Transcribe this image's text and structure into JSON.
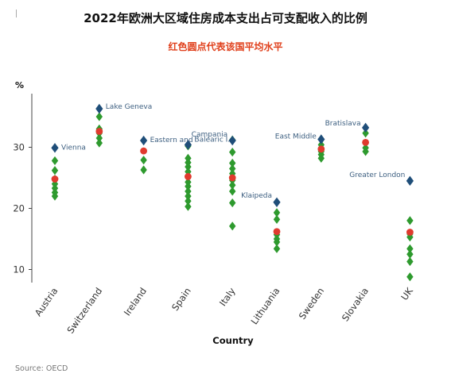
{
  "header": {
    "title": "2022年欧洲大区域住房成本支出占可支配收入的比例",
    "subtitle": "红色圆点代表该国平均水平"
  },
  "footer": {
    "source": "Source: OECD"
  },
  "chart_data": {
    "type": "scatter",
    "title": "2022年欧洲大区域住房成本支出占可支配收入的比例",
    "subtitle": "红色圆点代表该国平均水平",
    "xlabel": "Country",
    "ylabel": "%",
    "ylim": [
      8,
      37
    ],
    "yticks": [
      10,
      20,
      30
    ],
    "grid": false,
    "colors": {
      "region": "#2e9a2e",
      "average": "#e03a2e",
      "highlight": "#1f4e79",
      "subtitle": "#e0401c",
      "annotation": "#3d5f80"
    },
    "categories": [
      "Austria",
      "Switzerland",
      "Ireland",
      "Spain",
      "Italy",
      "Lithuania",
      "Sweden",
      "Slovakia",
      "UK"
    ],
    "regions": [
      [
        22.0,
        22.6,
        23.3,
        24.0,
        24.8,
        26.2,
        27.8
      ],
      [
        30.7,
        31.5,
        32.3,
        33.0,
        35.0
      ],
      [
        26.3,
        27.9
      ],
      [
        20.3,
        21.2,
        22.0,
        22.8,
        23.6,
        24.3,
        25.2,
        26.0,
        26.8,
        27.5,
        28.2,
        30.2
      ],
      [
        17.1,
        20.9,
        22.8,
        23.8,
        24.6,
        25.7,
        26.5,
        27.4,
        29.2,
        31.2
      ],
      [
        13.4,
        14.5,
        15.0,
        15.7,
        18.2,
        19.3
      ],
      [
        28.2,
        28.8,
        29.3,
        29.9,
        30.4
      ],
      [
        29.3,
        29.9,
        32.3
      ],
      [
        8.8,
        11.3,
        12.5,
        13.4,
        15.3,
        15.8,
        18.0
      ]
    ],
    "averages": [
      24.8,
      32.6,
      29.4,
      25.2,
      25.0,
      16.2,
      29.7,
      30.8,
      16.1
    ],
    "highlights": [
      {
        "category": "Austria",
        "value": 29.9,
        "label": "Vienna"
      },
      {
        "category": "Switzerland",
        "value": 36.3,
        "label": "Lake Geneva"
      },
      {
        "category": "Ireland",
        "value": 31.1,
        "label": "Eastern and"
      },
      {
        "category": "Spain",
        "value": 30.4,
        "label": "Balearic I."
      },
      {
        "category": "Italy",
        "value": 31.1,
        "label": "Campania"
      },
      {
        "category": "Lithuania",
        "value": 21.0,
        "label": "Klaipeda"
      },
      {
        "category": "Sweden",
        "value": 31.3,
        "label": "East Middle"
      },
      {
        "category": "Slovakia",
        "value": 33.2,
        "label": "Bratislava"
      },
      {
        "category": "UK",
        "value": 24.5,
        "label": "Greater London"
      }
    ]
  }
}
